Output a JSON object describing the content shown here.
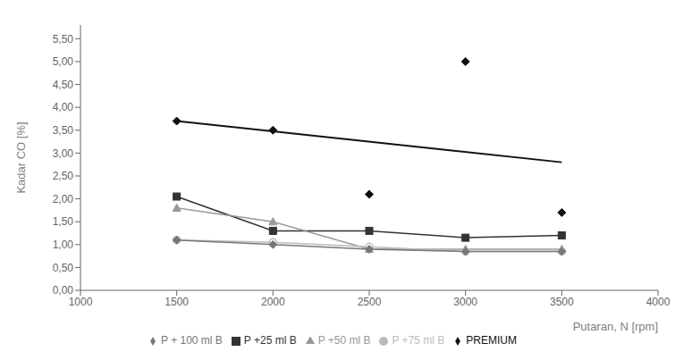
{
  "chart_data": {
    "type": "line",
    "xlabel": "Putaran, N [rpm]",
    "ylabel": "Kadar CO [%]",
    "x": [
      1500,
      2000,
      2500,
      3000,
      3500
    ],
    "series": [
      {
        "x": [
          1500,
          3500
        ],
        "values": [
          3.7,
          2.8
        ],
        "color": "#111111",
        "line_style": "solid"
      },
      {
        "name": "PREMIUM",
        "values": [
          3.7,
          3.5,
          2.1,
          5.0,
          1.7
        ],
        "color": "#111111",
        "marker": "diamond",
        "line_style": "none"
      },
      {
        "name": "P +25 ml B",
        "values": [
          2.05,
          1.3,
          1.3,
          1.15,
          1.2
        ],
        "color": "#333333",
        "marker": "square",
        "line_style": "solid"
      },
      {
        "name": "P +50 ml B",
        "values": [
          1.8,
          1.5,
          0.9,
          0.9,
          0.9
        ],
        "color": "#999999",
        "marker": "triangle",
        "line_style": "solid"
      },
      {
        "name": "P +75 ml B",
        "values": [
          1.1,
          1.05,
          0.95,
          0.85,
          0.85
        ],
        "color": "#bbbbbb",
        "marker": "circle",
        "line_style": "solid"
      },
      {
        "name": "P + 100 ml B",
        "values": [
          1.1,
          1.0,
          0.9,
          0.85,
          0.85
        ],
        "color": "#777777",
        "marker": "diamond",
        "line_style": "solid"
      }
    ],
    "xlim": [
      1000,
      4000
    ],
    "xticks": [
      1000,
      1500,
      2000,
      2500,
      3000,
      3500,
      4000
    ],
    "ylim": [
      0.0,
      5.8
    ],
    "yticks": [
      {
        "value": 0.0,
        "label": "0,00"
      },
      {
        "value": 0.5,
        "label": "0,50"
      },
      {
        "value": 1.0,
        "label": "1,00"
      },
      {
        "value": 1.5,
        "label": "1,50"
      },
      {
        "value": 2.0,
        "label": "2,00"
      },
      {
        "value": 2.5,
        "label": "2,50"
      },
      {
        "value": 3.0,
        "label": "3,00"
      },
      {
        "value": 3.5,
        "label": "3,50"
      },
      {
        "value": 4.0,
        "label": "4,00"
      },
      {
        "value": 4.5,
        "label": "4,50"
      },
      {
        "value": 5.0,
        "label": "5,00"
      },
      {
        "value": 5.5,
        "label": "5,50"
      }
    ],
    "grid": false,
    "legend": "bottom"
  }
}
